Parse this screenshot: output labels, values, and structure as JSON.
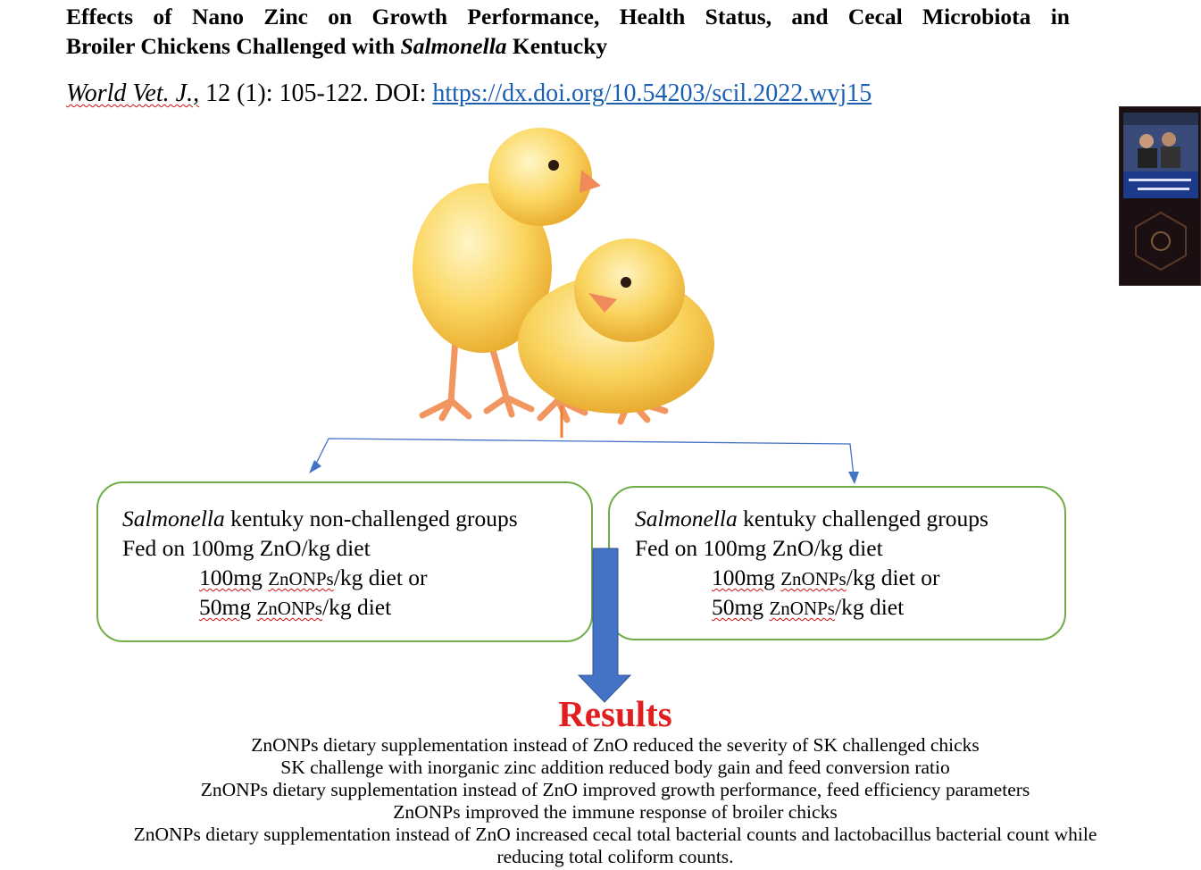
{
  "title": {
    "line1": "Effects of Nano Zinc on Growth Performance, Health Status, and Cecal Microbiota in",
    "line2_prefix": "Broiler Chickens Challenged with ",
    "line2_species": "Salmonella",
    "line2_suffix": " Kentucky"
  },
  "citation": {
    "journal": "World Vet. J.,",
    "volume": " 12 (1): 105-122. DOI: ",
    "doi_link": "https://dx.doi.org/10.54203/scil.2022.wvj15"
  },
  "group_non_challenged": {
    "species": "Salmonella",
    "heading_rest": " kentuky non-challenged groups",
    "fed_line": "Fed on 100mg ZnO/kg diet",
    "option2_amount": "100mg",
    "option2_compound": "ZnONPs",
    "option2_rest": "/kg diet or",
    "option3_amount": "50mg",
    "option3_compound": "ZnONPs",
    "option3_rest": "/kg diet"
  },
  "group_challenged": {
    "species": "Salmonella",
    "heading_rest": " kentuky challenged groups",
    "fed_line": "Fed on 100mg ZnO/kg diet",
    "option2_amount": "100mg",
    "option2_compound": "ZnONPs",
    "option2_rest": "/kg diet or",
    "option3_amount": "50mg",
    "option3_compound": "ZnONPs",
    "option3_rest": "/kg diet"
  },
  "results": {
    "heading": "Results",
    "findings": [
      "ZnONPs dietary supplementation instead of ZnO reduced the severity of SK challenged chicks",
      "SK challenge with inorganic zinc addition reduced body gain and feed conversion ratio",
      "ZnONPs dietary supplementation instead of ZnO improved growth performance, feed efficiency parameters",
      "ZnONPs improved the immune response of broiler chicks",
      "ZnONPs dietary supplementation instead of ZnO increased cecal total bacterial counts and lactobacillus bacterial count while",
      "reducing total coliform counts."
    ]
  },
  "colors": {
    "results_red": "#e02020",
    "box_border_green": "#70ad47",
    "arrow_blue": "#4472c4",
    "link_blue": "#1a5fb4"
  },
  "images": {
    "chicks": "two-yellow-chicks-photo",
    "thumbnail": "video-thumbnail"
  }
}
